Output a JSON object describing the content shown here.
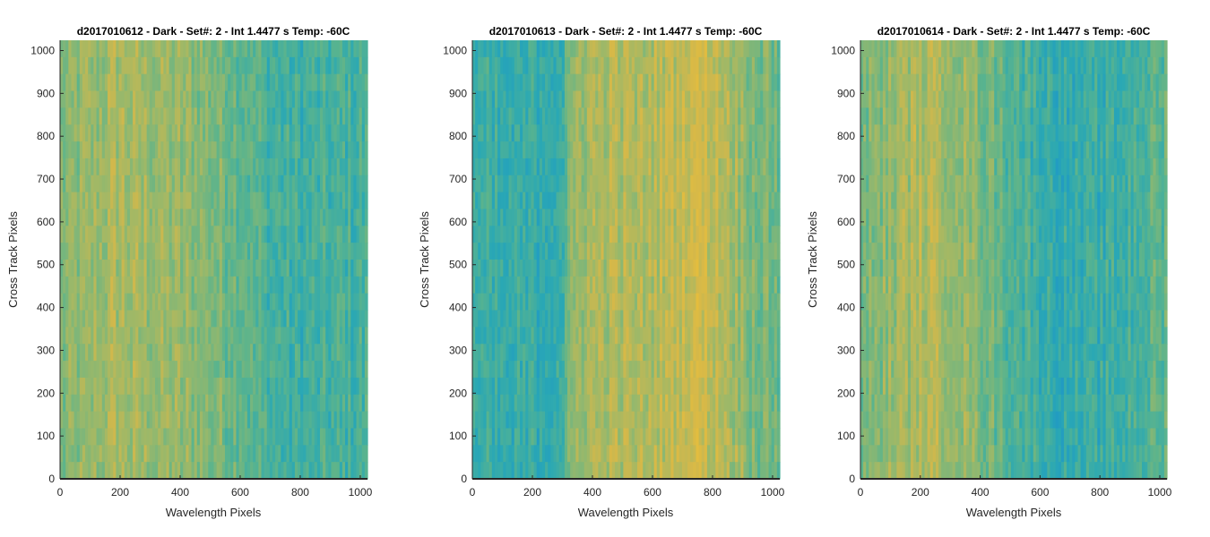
{
  "colors": {
    "background": "#ffffff",
    "axis": "#262626",
    "colormap": [
      "#1e96c8",
      "#2aa8b4",
      "#5cb48c",
      "#9ab86a",
      "#d4b84a",
      "#e6be3c"
    ]
  },
  "chart_data": [
    {
      "type": "heatmap",
      "title": "d2017010612 - Dark - Set#: 2 - Int 1.4477 s Temp: -60C",
      "xlabel": "Wavelength Pixels",
      "ylabel": "Cross Track Pixels",
      "xlim": [
        0,
        1024
      ],
      "ylim": [
        0,
        1024
      ],
      "xticks": [
        0,
        200,
        400,
        600,
        800,
        1000
      ],
      "yticks": [
        0,
        100,
        200,
        300,
        400,
        500,
        600,
        700,
        800,
        900,
        1000
      ],
      "colormap": "parula",
      "column_profile": {
        "x": [
          0,
          100,
          200,
          300,
          400,
          500,
          600,
          700,
          800,
          900,
          1024
        ],
        "value": [
          0.5,
          0.58,
          0.65,
          0.6,
          0.58,
          0.52,
          0.45,
          0.32,
          0.28,
          0.3,
          0.33
        ]
      },
      "noise": 0.22
    },
    {
      "type": "heatmap",
      "title": "d2017010613 - Dark - Set#: 2 - Int 1.4477 s Temp: -60C",
      "xlabel": "Wavelength Pixels",
      "ylabel": "Cross Track Pixels",
      "xlim": [
        0,
        1024
      ],
      "ylim": [
        0,
        1024
      ],
      "xticks": [
        0,
        200,
        400,
        600,
        800,
        1000
      ],
      "yticks": [
        0,
        100,
        200,
        300,
        400,
        500,
        600,
        700,
        800,
        900,
        1000
      ],
      "colormap": "parula",
      "column_profile": {
        "x": [
          0,
          100,
          200,
          300,
          350,
          450,
          550,
          650,
          750,
          850,
          950,
          1024
        ],
        "value": [
          0.28,
          0.22,
          0.25,
          0.3,
          0.62,
          0.68,
          0.65,
          0.72,
          0.82,
          0.68,
          0.5,
          0.45
        ]
      },
      "noise": 0.22
    },
    {
      "type": "heatmap",
      "title": "d2017010614 - Dark - Set#: 2 - Int 1.4477 s Temp: -60C",
      "xlabel": "Wavelength Pixels",
      "ylabel": "Cross Track Pixels",
      "xlim": [
        0,
        1024
      ],
      "ylim": [
        0,
        1024
      ],
      "xticks": [
        0,
        200,
        400,
        600,
        800,
        1000
      ],
      "yticks": [
        0,
        100,
        200,
        300,
        400,
        500,
        600,
        700,
        800,
        900,
        1000
      ],
      "colormap": "parula",
      "column_profile": {
        "x": [
          0,
          100,
          200,
          300,
          400,
          500,
          600,
          700,
          800,
          900,
          1024
        ],
        "value": [
          0.45,
          0.58,
          0.68,
          0.64,
          0.52,
          0.38,
          0.28,
          0.22,
          0.24,
          0.32,
          0.42
        ]
      },
      "noise": 0.22
    }
  ]
}
